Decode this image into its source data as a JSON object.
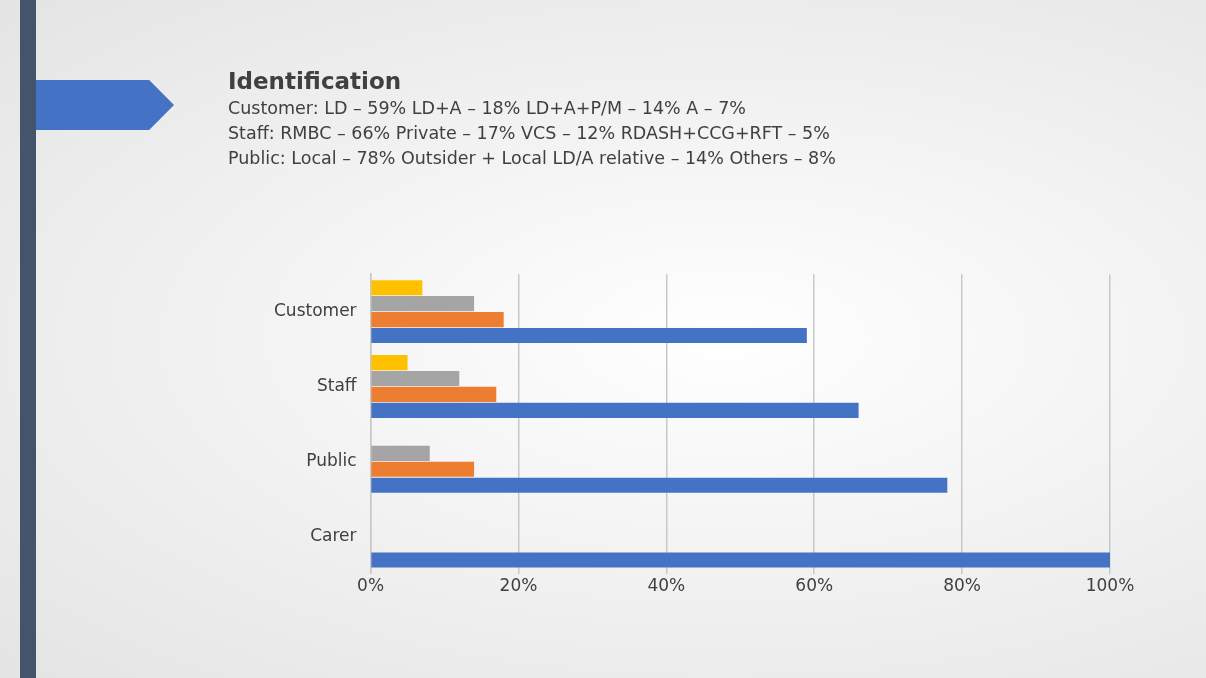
{
  "chart_data": {
    "type": "bar",
    "orientation": "horizontal",
    "title": "Identification",
    "annotations": [
      "Customer: LD – 59% LD+A – 18% LD+A+P/M – 14% A – 7%",
      "Staff: RMBC – 66% Private – 17% VCS – 12% RDASH+CCG+RFT – 5%",
      "Public: Local – 78% Outsider + Local LD/A relative – 14% Others – 8%"
    ],
    "categories": [
      "Customer",
      "Staff",
      "Public",
      "Carer"
    ],
    "series": [
      {
        "color": "#ffc000",
        "values": [
          7,
          5,
          null,
          null
        ]
      },
      {
        "color": "#a5a5a5",
        "values": [
          14,
          12,
          8,
          null
        ]
      },
      {
        "color": "#ed7d31",
        "values": [
          18,
          17,
          14,
          null
        ]
      },
      {
        "color": "#4472c4",
        "values": [
          59,
          66,
          78,
          100
        ]
      }
    ],
    "xlim": [
      0,
      100
    ],
    "xticks": [
      {
        "value": 0,
        "label": "0%"
      },
      {
        "value": 20,
        "label": "20%"
      },
      {
        "value": 40,
        "label": "40%"
      },
      {
        "value": 60,
        "label": "60%"
      },
      {
        "value": 80,
        "label": "80%"
      },
      {
        "value": 100,
        "label": "100%"
      }
    ],
    "grid": "x",
    "legend": false
  }
}
